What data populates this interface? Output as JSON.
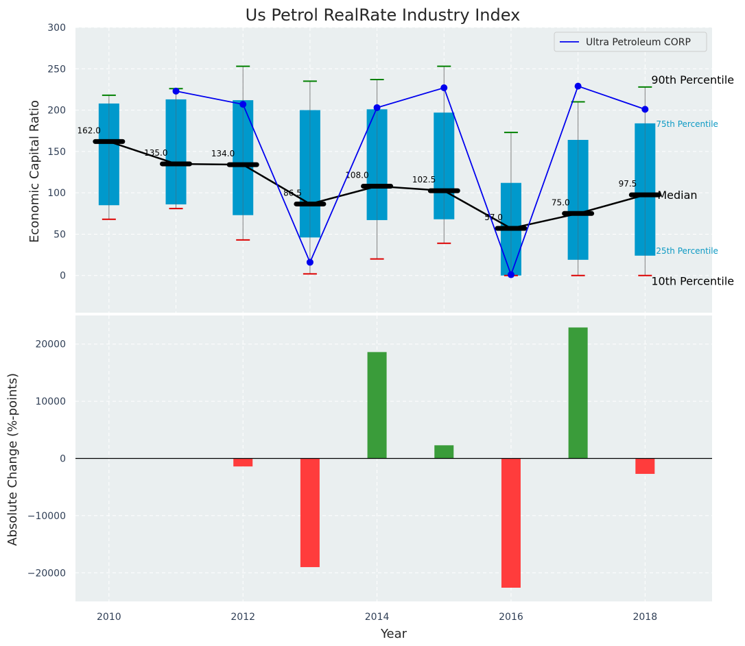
{
  "chart_data": [
    {
      "type": "box",
      "title": "Us Petrol RealRate Industry Index",
      "xlabel": "",
      "ylabel": "Economic Capital Ratio",
      "xlim": [
        2009.5,
        2019
      ],
      "ylim": [
        -45,
        300
      ],
      "yticks": [
        0,
        50,
        100,
        150,
        200,
        250,
        300
      ],
      "grid": true,
      "years": [
        2010,
        2011,
        2012,
        2013,
        2014,
        2015,
        2016,
        2017,
        2018
      ],
      "p10": [
        68,
        81,
        43,
        2,
        20,
        39,
        0,
        0,
        0
      ],
      "p25": [
        85,
        86,
        73,
        46,
        67,
        68,
        0,
        19,
        24
      ],
      "median": [
        162,
        135,
        134,
        86.5,
        108,
        102.5,
        57,
        75,
        97.5
      ],
      "median_labels": [
        "162.0",
        "135.0",
        "134.0",
        "86.5",
        "108.0",
        "102.5",
        "57.0",
        "75.0",
        "97.5"
      ],
      "p75": [
        208,
        213,
        212,
        200,
        201,
        197,
        112,
        164,
        184
      ],
      "p90": [
        218,
        226,
        253,
        235,
        237,
        253,
        173,
        210,
        228
      ],
      "series": [
        {
          "name": "Ultra Petroleum CORP",
          "color": "#0000ee",
          "x": [
            2011,
            2012,
            2013,
            2014,
            2015,
            2016,
            2017,
            2018
          ],
          "values": [
            223,
            207,
            16,
            203,
            227,
            1,
            229,
            201
          ]
        }
      ],
      "legend": {
        "position": "top-right",
        "entries": [
          "Ultra Petroleum CORP"
        ]
      },
      "annotations": {
        "p90": "90th Percentile",
        "p75": "75th Percentile",
        "median": "Median",
        "p25": "25th Percentile",
        "p10": "10th Percentile"
      },
      "colors": {
        "box": "#0099cc",
        "whisker": "#808080",
        "p90_cap": "#008000",
        "p10_cap": "#dd0000",
        "median": "#000000"
      }
    },
    {
      "type": "bar",
      "title": "",
      "xlabel": "Year",
      "ylabel": "Absolute Change (%-points)",
      "xlim": [
        2009.5,
        2019
      ],
      "ylim": [
        -25000,
        25000
      ],
      "yticks": [
        -20000,
        -10000,
        0,
        10000,
        20000
      ],
      "ytick_labels": [
        "−20000",
        "−10000",
        "0",
        "10000",
        "20000"
      ],
      "xticks": [
        2010,
        2012,
        2014,
        2016,
        2018
      ],
      "xtick_labels": [
        "2010",
        "2012",
        "2014",
        "2016",
        "2018"
      ],
      "grid": true,
      "categories": [
        2012,
        2013,
        2014,
        2015,
        2016,
        2017,
        2018
      ],
      "values": [
        -1400,
        -19000,
        18600,
        2300,
        -22600,
        22900,
        -2700
      ],
      "colors": {
        "positive": "#3a9c3a",
        "negative": "#ff3c3c",
        "zero_line": "#000000"
      }
    }
  ]
}
